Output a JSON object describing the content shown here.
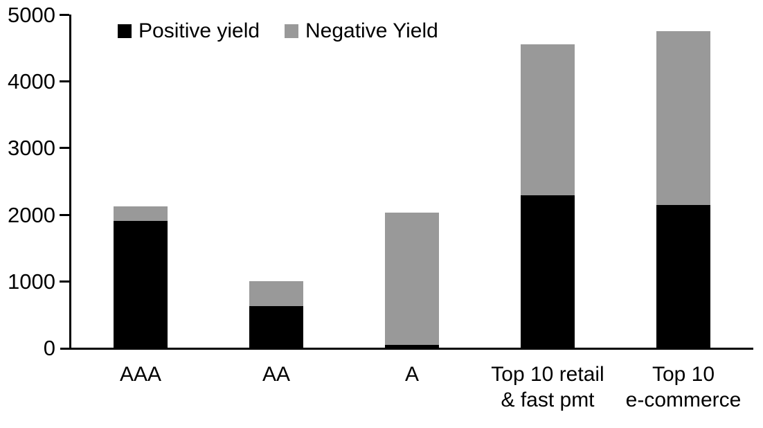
{
  "legend": {
    "positive_label": "Positive yield",
    "negative_label": "Negative Yield"
  },
  "colors": {
    "positive": "#000000",
    "negative": "#999999",
    "axis": "#000000",
    "text": "#000000",
    "background": "#ffffff"
  },
  "y_axis": {
    "tick_labels": [
      "0",
      "1000",
      "2000",
      "3000",
      "4000",
      "5000"
    ]
  },
  "chart_data": {
    "type": "bar",
    "stacked": true,
    "title": "",
    "xlabel": "",
    "ylabel": "",
    "categories": [
      "AAA",
      "AA",
      "A",
      "Top 10 retail\n& fast pmt",
      "Top 10\ne-commerce"
    ],
    "series": [
      {
        "name": "Positive yield",
        "color": "#000000",
        "values": [
          1900,
          620,
          45,
          2290,
          2140
        ]
      },
      {
        "name": "Negative Yield",
        "color": "#999999",
        "values": [
          220,
          380,
          1985,
          2260,
          2610
        ]
      }
    ],
    "totals": [
      2120,
      1000,
      2030,
      4550,
      4750
    ],
    "ylim": [
      0,
      5000
    ],
    "yticks": [
      0,
      1000,
      2000,
      3000,
      4000,
      5000
    ],
    "grid": false,
    "legend_position": "top"
  }
}
